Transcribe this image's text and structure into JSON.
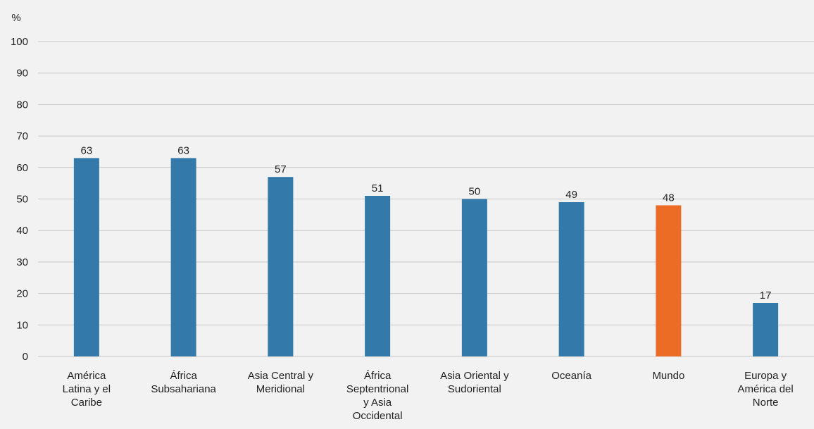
{
  "chart_data": {
    "type": "bar",
    "ylabel": "%",
    "ylim": [
      0,
      100
    ],
    "yticks": [
      0,
      10,
      20,
      30,
      40,
      50,
      60,
      70,
      80,
      90,
      100
    ],
    "grid": true,
    "categories": [
      [
        "América",
        "Latina y el",
        "Caribe"
      ],
      [
        "África",
        "Subsahariana"
      ],
      [
        "Asia Central y",
        "Meridional"
      ],
      [
        "África",
        "Septentrional",
        "y Asia",
        "Occidental"
      ],
      [
        "Asia Oriental y",
        "Sudoriental"
      ],
      [
        "Oceanía"
      ],
      [
        "Mundo"
      ],
      [
        "Europa y",
        "América del",
        "Norte"
      ]
    ],
    "values": [
      63,
      63,
      57,
      51,
      50,
      49,
      48,
      17
    ],
    "highlight_index": 6,
    "colors": {
      "bar": "#337aaa",
      "highlight": "#ec6b25"
    }
  }
}
